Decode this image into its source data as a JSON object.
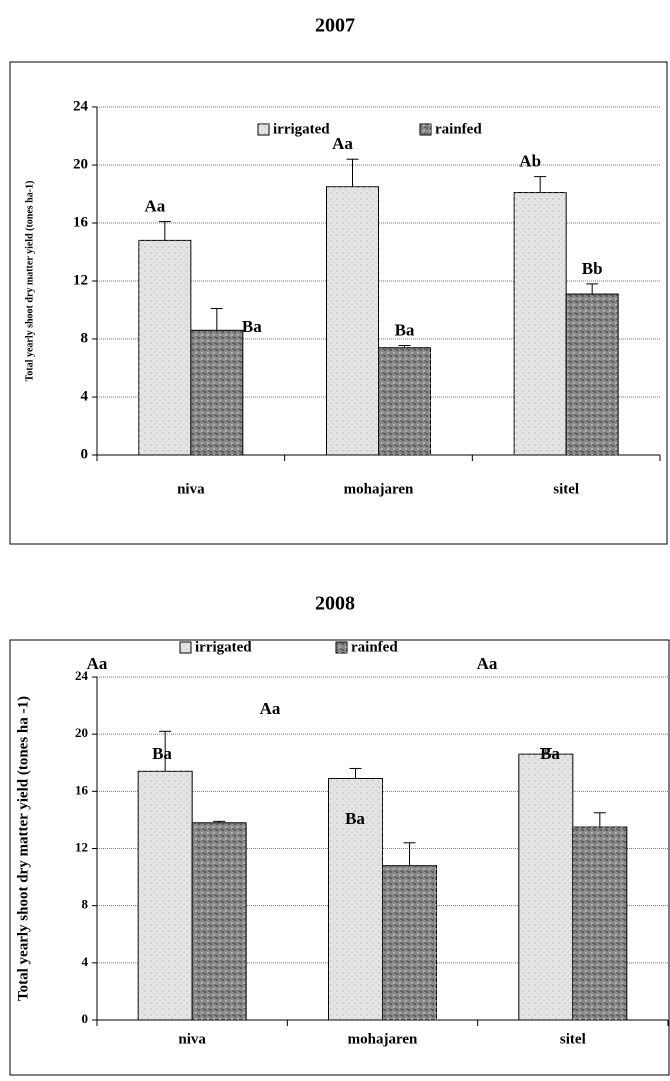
{
  "chart_data": [
    {
      "type": "bar",
      "title": "2007",
      "y_label": "Total yearly shoot dry matter yield (tones ha-1)",
      "categories": [
        "niva",
        "mohajaren",
        "sitel"
      ],
      "series": [
        {
          "name": "irrigated",
          "color": "#e4e4e4",
          "values": [
            14.8,
            18.5,
            18.1
          ],
          "errors": [
            1.3,
            1.9,
            1.1
          ],
          "letters": [
            "Aa",
            "Aa",
            "Ab"
          ]
        },
        {
          "name": "rainfed",
          "color": "#8a8a8a",
          "values": [
            8.6,
            7.4,
            11.1
          ],
          "errors": [
            1.5,
            0.15,
            0.7
          ],
          "letters": [
            "Ba",
            "Ba",
            "Bb"
          ]
        }
      ],
      "ylim": [
        0,
        24
      ],
      "yticks": [
        0,
        4,
        8,
        12,
        16,
        20,
        24
      ],
      "grid": true
    },
    {
      "type": "bar",
      "title": "2008",
      "y_label": "Total yearly shoot dry matter yield (tones ha -1)",
      "categories": [
        "niva",
        "mohajaren",
        "sitel"
      ],
      "series": [
        {
          "name": "irrigated",
          "color": "#e4e4e4",
          "values": [
            17.4,
            16.9,
            18.6
          ],
          "errors": [
            2.8,
            0.7,
            0.4
          ],
          "letters": [
            "Aa",
            "Aa",
            "Aa"
          ]
        },
        {
          "name": "rainfed",
          "color": "#8a8a8a",
          "values": [
            13.8,
            10.8,
            13.5
          ],
          "errors": [
            0.1,
            1.6,
            1.0
          ],
          "letters": [
            "Ba",
            "Ba",
            "Ba"
          ]
        }
      ],
      "ylim": [
        0,
        24
      ],
      "yticks": [
        0,
        4,
        8,
        12,
        16,
        20,
        24
      ],
      "grid": true
    }
  ]
}
